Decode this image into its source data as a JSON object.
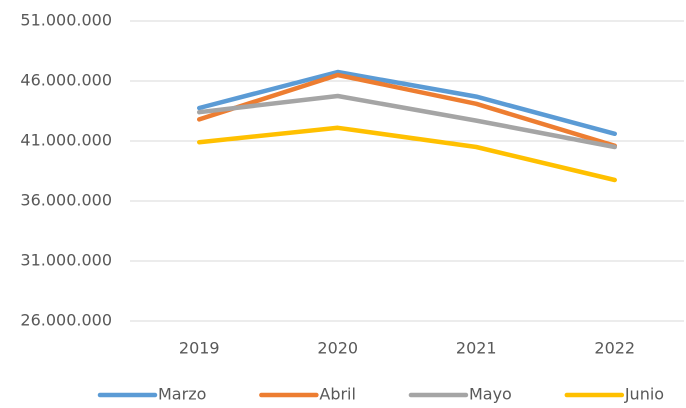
{
  "chart_data": {
    "type": "line",
    "categories": [
      "2019",
      "2020",
      "2021",
      "2022"
    ],
    "series": [
      {
        "name": "Marzo",
        "color": "#5b9bd5",
        "values": [
          43750000,
          46750000,
          44700000,
          41600000
        ]
      },
      {
        "name": "Abril",
        "color": "#ed7d31",
        "values": [
          42800000,
          46500000,
          44100000,
          40600000
        ]
      },
      {
        "name": "Mayo",
        "color": "#a5a5a5",
        "values": [
          43400000,
          44750000,
          42700000,
          40500000
        ]
      },
      {
        "name": "Junio",
        "color": "#ffc000",
        "values": [
          40900000,
          42100000,
          40500000,
          37750000
        ]
      }
    ],
    "ylim": [
      26000000,
      51000000
    ],
    "yticks": [
      {
        "value": 26000000,
        "label": "26.000.000"
      },
      {
        "value": 31000000,
        "label": "31.000.000"
      },
      {
        "value": 36000000,
        "label": "36.000.000"
      },
      {
        "value": 41000000,
        "label": "41.000.000"
      },
      {
        "value": 46000000,
        "label": "46.000.000"
      },
      {
        "value": 51000000,
        "label": "51.000.000"
      }
    ],
    "grid": true,
    "legend": "bottom"
  }
}
